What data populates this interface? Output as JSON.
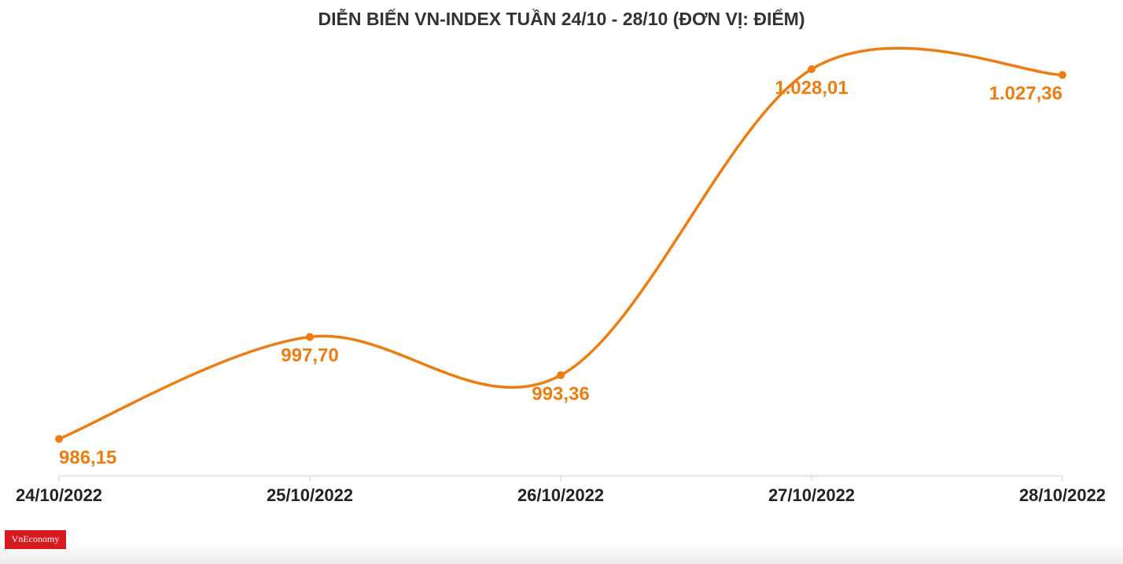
{
  "chart_data": {
    "type": "line",
    "title": "DIỄN BIẾN VN-INDEX TUẦN 24/10 - 28/10 (ĐƠN VỊ: ĐIỂM)",
    "categories": [
      "24/10/2022",
      "25/10/2022",
      "26/10/2022",
      "27/10/2022",
      "28/10/2022"
    ],
    "series": [
      {
        "color": "#ee7d11",
        "values": [
          986.15,
          997.7,
          993.36,
          1028.01,
          1027.36
        ],
        "value_labels": [
          "986,15",
          "997,70",
          "993,36",
          "1.028,01",
          "1.027,36"
        ]
      }
    ]
  },
  "logo": "VnEconomy"
}
